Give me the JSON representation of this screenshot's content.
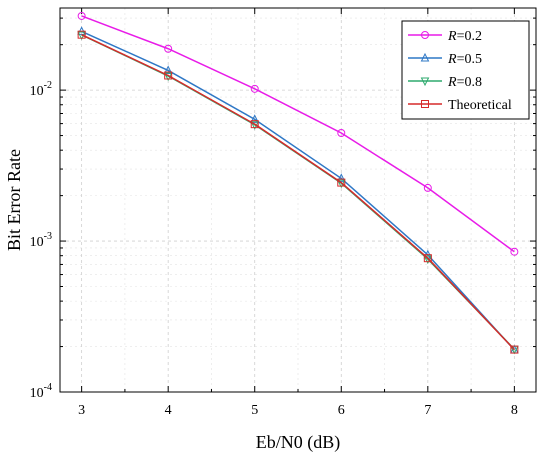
{
  "chart_data": {
    "type": "line",
    "title": "",
    "xlabel": "Eb/N0 (dB)",
    "ylabel": "Bit Error Rate",
    "xlim": [
      2.75,
      8.25
    ],
    "ylim": [
      0.0001,
      0.035
    ],
    "yscale": "log",
    "x_ticks": [
      3,
      4,
      5,
      6,
      7,
      8
    ],
    "y_ticks": [
      {
        "value": 0.0001,
        "base": "10",
        "exp": "-4"
      },
      {
        "value": 0.001,
        "base": "10",
        "exp": "-3"
      },
      {
        "value": 0.01,
        "base": "10",
        "exp": "-2"
      }
    ],
    "grid": true,
    "legend_position": "top-right",
    "x": [
      3,
      4,
      5,
      6,
      7,
      8
    ],
    "series": [
      {
        "name_prefix": "R",
        "name_suffix": "=0.2",
        "marker": "circle",
        "color": "#e81ce8",
        "values": [
          0.031,
          0.0188,
          0.0102,
          0.0052,
          0.00225,
          0.00085
        ]
      },
      {
        "name_prefix": "R",
        "name_suffix": "=0.5",
        "marker": "triangle-up",
        "color": "#2f78c6",
        "values": [
          0.0245,
          0.0135,
          0.0064,
          0.0026,
          0.00081,
          0.00019
        ]
      },
      {
        "name_prefix": "R",
        "name_suffix": "=0.8",
        "marker": "triangle-down",
        "color": "#2eaa6e",
        "values": [
          0.0232,
          0.0124,
          0.0059,
          0.00242,
          0.00076,
          0.000192
        ]
      },
      {
        "name_prefix": "",
        "name_suffix": "Theoretical",
        "marker": "square",
        "color": "#d62a2a",
        "values": [
          0.0233,
          0.0125,
          0.00595,
          0.00244,
          0.00077,
          0.000191
        ]
      }
    ]
  }
}
